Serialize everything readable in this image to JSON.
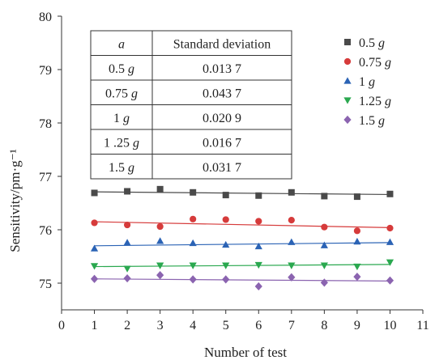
{
  "chart_data": {
    "type": "scatter",
    "xlabel": "Number of test",
    "ylabel": "Sensitivity/pm·g⁻¹",
    "xlim": [
      0,
      11
    ],
    "ylim": [
      74.5,
      80
    ],
    "xticks": [
      0,
      1,
      2,
      3,
      4,
      5,
      6,
      7,
      8,
      9,
      10,
      11
    ],
    "yticks": [
      75,
      76,
      77,
      78,
      79,
      80
    ],
    "grid": false,
    "legend": "top-right",
    "x": [
      1,
      2,
      3,
      4,
      5,
      6,
      7,
      8,
      9,
      10
    ],
    "series": [
      {
        "name": "0.5 g",
        "name_value": "0.5",
        "name_unit": "g",
        "marker": "square",
        "color": "#4a4a4a",
        "trend": [
          76.71,
          76.66
        ],
        "values": [
          76.69,
          76.72,
          76.76,
          76.7,
          76.65,
          76.64,
          76.7,
          76.63,
          76.62,
          76.67
        ]
      },
      {
        "name": "0.75 g",
        "name_value": "0.75",
        "name_unit": "g",
        "marker": "circle",
        "color": "#d63b3b",
        "trend": [
          76.15,
          76.04
        ],
        "values": [
          76.13,
          76.09,
          76.06,
          76.2,
          76.19,
          76.16,
          76.18,
          76.05,
          75.98,
          76.03
        ]
      },
      {
        "name": "1 g",
        "name_value": "1",
        "name_unit": "g",
        "marker": "triangle",
        "color": "#2b63b5",
        "trend": [
          75.7,
          75.76
        ],
        "values": [
          75.65,
          75.76,
          75.79,
          75.75,
          75.72,
          75.69,
          75.77,
          75.71,
          75.78,
          75.77
        ]
      },
      {
        "name": "1.25 g",
        "name_value": "1.25",
        "name_unit": "g",
        "marker": "triangle-down",
        "color": "#2aa84f",
        "trend": [
          75.31,
          75.35
        ],
        "values": [
          75.32,
          75.27,
          75.33,
          75.33,
          75.33,
          75.34,
          75.33,
          75.33,
          75.31,
          75.39
        ]
      },
      {
        "name": "1.5 g",
        "name_value": "1.5",
        "name_unit": "g",
        "marker": "diamond",
        "color": "#8b64b0",
        "trend": [
          75.08,
          75.04
        ],
        "values": [
          75.08,
          75.09,
          75.15,
          75.07,
          75.07,
          74.94,
          75.11,
          75.01,
          75.12,
          75.05
        ]
      }
    ],
    "inset_table": {
      "header_a": "a",
      "header_sd": "Standard deviation",
      "rows": [
        {
          "a": "0.5",
          "a_unit": "g",
          "sd": "0.013 7"
        },
        {
          "a": "0.75",
          "a_unit": "g",
          "sd": "0.043 7"
        },
        {
          "a": "1",
          "a_unit": "g",
          "sd": "0.020 9"
        },
        {
          "a": "1 .25",
          "a_unit": "g",
          "sd": "0.016 7"
        },
        {
          "a": "1.5",
          "a_unit": "g",
          "sd": "0.031 7"
        }
      ]
    }
  }
}
